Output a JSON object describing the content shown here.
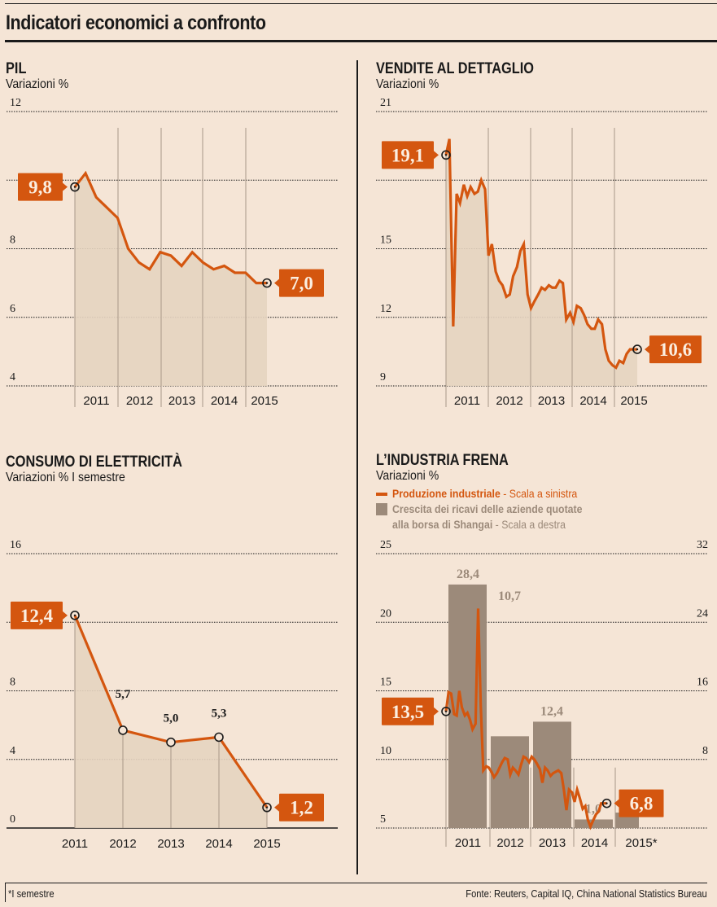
{
  "page": {
    "title": "Indicatori economici a confronto",
    "footnote": "*I semestre",
    "source": "Fonte: Reuters, Capital IQ, China National Statistics Bureau",
    "colors": {
      "background": "#f5e5d6",
      "line": "#d4560f",
      "area": "#e6d4c0",
      "bar": "#9c8a7a",
      "text": "#1a1a1a"
    }
  },
  "panels": {
    "pil": {
      "title": "PIL",
      "subtitle": "Variazioni %"
    },
    "vendite": {
      "title": "VENDITE AL DETTAGLIO",
      "subtitle": "Variazioni %"
    },
    "elettricita": {
      "title": "CONSUMO DI ELETTRICITÀ",
      "subtitle": "Variazioni % I semestre"
    },
    "industria": {
      "title": "L’INDUSTRIA FRENA",
      "subtitle": "Variazioni %",
      "legend": [
        {
          "bold": "Produzione industriale",
          "rest": " - Scala a sinistra",
          "color": "#d4560f"
        },
        {
          "bold": "Crescita dei ricavi delle aziende quotate",
          "bold2": "alla borsa di Shangai",
          "rest": " - Scala a destra",
          "color": "#9c8a7a"
        }
      ]
    }
  },
  "chart_data": [
    {
      "id": "pil",
      "type": "area",
      "title": "PIL",
      "ylabel": "Variazioni %",
      "ylim": [
        4,
        12
      ],
      "yticks": [
        4,
        6,
        8,
        10,
        12
      ],
      "ytick_labels": [
        "4",
        "6",
        "8",
        "",
        "12"
      ],
      "categories": [
        "2011",
        "2012",
        "2013",
        "2014",
        "2015"
      ],
      "x_range": [
        2010.75,
        2015.25
      ],
      "x": [
        2010.75,
        2011.0,
        2011.25,
        2011.5,
        2011.75,
        2012.0,
        2012.25,
        2012.5,
        2012.75,
        2013.0,
        2013.25,
        2013.5,
        2013.75,
        2014.0,
        2014.25,
        2014.5,
        2014.75,
        2015.0,
        2015.25
      ],
      "values": [
        9.8,
        10.2,
        9.5,
        9.2,
        8.9,
        8.0,
        7.6,
        7.4,
        7.9,
        7.8,
        7.5,
        7.9,
        7.6,
        7.4,
        7.5,
        7.3,
        7.3,
        7.0,
        7.0
      ],
      "start_label": "9,8",
      "end_label": "7,0"
    },
    {
      "id": "vendite",
      "type": "area",
      "title": "VENDITE AL DETTAGLIO",
      "ylabel": "Variazioni %",
      "ylim": [
        9,
        21
      ],
      "yticks": [
        9,
        12,
        15,
        18,
        21
      ],
      "ytick_labels": [
        "9",
        "12",
        "15",
        "",
        "21"
      ],
      "categories": [
        "2011",
        "2012",
        "2013",
        "2014",
        "2015"
      ],
      "x_range": [
        2011.0,
        2015.5
      ],
      "x": [
        2011.0,
        2011.08,
        2011.17,
        2011.25,
        2011.33,
        2011.42,
        2011.5,
        2011.58,
        2011.67,
        2011.75,
        2011.83,
        2011.92,
        2012.0,
        2012.08,
        2012.17,
        2012.25,
        2012.33,
        2012.42,
        2012.5,
        2012.58,
        2012.67,
        2012.75,
        2012.83,
        2012.92,
        2013.0,
        2013.08,
        2013.17,
        2013.25,
        2013.33,
        2013.42,
        2013.5,
        2013.58,
        2013.67,
        2013.75,
        2013.83,
        2013.92,
        2014.0,
        2014.08,
        2014.17,
        2014.25,
        2014.33,
        2014.42,
        2014.5,
        2014.58,
        2014.67,
        2014.75,
        2014.83,
        2014.92,
        2015.0,
        2015.08,
        2015.17,
        2015.25,
        2015.33,
        2015.42,
        2015.5
      ],
      "values": [
        19.1,
        19.8,
        11.6,
        17.4,
        17.0,
        17.8,
        17.3,
        17.7,
        17.4,
        17.5,
        18.0,
        17.6,
        14.7,
        15.2,
        14.0,
        13.6,
        13.4,
        12.9,
        13.0,
        13.8,
        14.2,
        14.9,
        15.2,
        13.0,
        12.4,
        12.7,
        13.0,
        13.3,
        13.2,
        13.4,
        13.3,
        13.3,
        13.6,
        13.5,
        11.9,
        12.2,
        11.8,
        12.5,
        12.4,
        12.1,
        11.7,
        11.5,
        11.5,
        11.9,
        11.7,
        10.6,
        10.1,
        9.9,
        9.8,
        10.1,
        10.0,
        10.4,
        10.6,
        10.6,
        10.6
      ],
      "start_label": "19,1",
      "end_label": "10,6"
    },
    {
      "id": "elettricita",
      "type": "area",
      "title": "CONSUMO DI ELETTRICITÀ",
      "ylabel": "Variazioni % I semestre",
      "ylim": [
        0,
        16
      ],
      "yticks": [
        0,
        4,
        8,
        12,
        16
      ],
      "ytick_labels": [
        "0",
        "4",
        "8",
        "",
        "16"
      ],
      "categories": [
        "2011",
        "2012",
        "2013",
        "2014",
        "2015"
      ],
      "values": [
        12.4,
        5.7,
        5.0,
        5.3,
        1.2
      ],
      "point_labels": [
        "12,4",
        "5,7",
        "5,0",
        "5,3",
        "1,2"
      ]
    },
    {
      "id": "industria",
      "type": "bar+line",
      "title": "L’INDUSTRIA FRENA",
      "ylabel": "Variazioni %",
      "categories": [
        "2011",
        "2012",
        "2013",
        "2014",
        "2015*"
      ],
      "left_axis": {
        "ylim": [
          5,
          25
        ],
        "yticks": [
          5,
          10,
          15,
          20,
          25
        ]
      },
      "right_axis": {
        "ylim": [
          0,
          32
        ],
        "yticks": [
          0,
          8,
          16,
          24,
          32
        ],
        "ytick_labels": [
          "",
          "8",
          "16",
          "24",
          "32"
        ]
      },
      "series": [
        {
          "name": "Crescita dei ricavi delle aziende quotate alla borsa di Shangai",
          "axis": "right",
          "type": "bar",
          "values": [
            28.4,
            10.7,
            12.4,
            1.0,
            1.8
          ],
          "labels": [
            "28,4",
            "10,7",
            "12,4",
            "1,0",
            "1,8"
          ]
        },
        {
          "name": "Produzione industriale",
          "axis": "left",
          "type": "line",
          "x_range": [
            2011.0,
            2015.5
          ],
          "x": [
            2011.0,
            2011.06,
            2011.12,
            2011.19,
            2011.25,
            2011.31,
            2011.37,
            2011.44,
            2011.5,
            2011.56,
            2011.62,
            2011.69,
            2011.75,
            2011.81,
            2011.87,
            2011.94,
            2012.0,
            2012.06,
            2012.12,
            2012.19,
            2012.25,
            2012.31,
            2012.37,
            2012.44,
            2012.5,
            2012.56,
            2012.62,
            2012.69,
            2012.75,
            2012.81,
            2012.87,
            2012.94,
            2013.0,
            2013.06,
            2013.12,
            2013.19,
            2013.25,
            2013.31,
            2013.37,
            2013.44,
            2013.5,
            2013.56,
            2013.62,
            2013.69,
            2013.75,
            2013.81,
            2013.87,
            2013.94,
            2014.0,
            2014.06,
            2014.12,
            2014.19,
            2014.25,
            2014.31,
            2014.37,
            2014.44,
            2014.5,
            2014.56,
            2014.62,
            2014.69,
            2014.75,
            2014.81,
            2014.87,
            2014.94,
            2015.0,
            2015.06,
            2015.12,
            2015.19,
            2015.25,
            2015.31,
            2015.37,
            2015.44,
            2015.5
          ],
          "values": [
            13.5,
            14.9,
            14.8,
            13.3,
            13.2,
            15.0,
            13.8,
            13.2,
            13.4,
            12.9,
            12.2,
            12.6,
            21.0,
            14.0,
            9.2,
            9.5,
            9.4,
            9.1,
            8.7,
            9.0,
            9.4,
            9.8,
            10.1,
            10.0,
            8.9,
            9.4,
            9.2,
            8.9,
            9.6,
            10.2,
            10.1,
            9.8,
            10.2,
            10.0,
            9.7,
            9.3,
            8.3,
            9.4,
            9.2,
            8.8,
            9.0,
            9.1,
            9.2,
            9.0,
            7.8,
            6.3,
            7.8,
            7.6,
            6.9,
            7.8,
            7.2,
            6.4,
            6.6,
            5.6,
            5.1,
            5.6,
            6.0,
            6.2,
            6.8,
            6.8,
            6.8,
            6.8,
            6.8,
            6.8,
            6.8,
            6.8,
            6.8,
            6.8,
            6.8,
            6.8,
            6.8,
            6.8,
            6.8
          ],
          "start_label": "13,5",
          "end_label": "6,8"
        }
      ]
    }
  ]
}
